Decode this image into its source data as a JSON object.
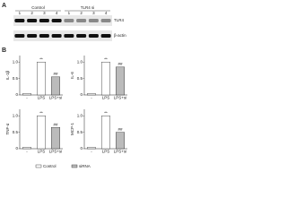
{
  "panel_labels": [
    "A",
    "B"
  ],
  "blot": {
    "groups": [
      "Control",
      "TLR4 si"
    ],
    "lanes": [
      "1",
      "2",
      "3",
      "4",
      "1",
      "2",
      "3",
      "4"
    ],
    "rows": [
      "TLR4",
      "β-actin"
    ]
  },
  "legend": [
    {
      "label": "Control",
      "color": "#ffffff"
    },
    {
      "label": "siRNA",
      "color": "#bbbbbb"
    }
  ],
  "chart_data": [
    {
      "type": "bar",
      "ylabel": "IL-1β",
      "categories": [
        "-",
        "LPS",
        "LPS+si"
      ],
      "values": [
        0.04,
        1.0,
        0.55
      ],
      "colors": [
        "#ffffff",
        "#ffffff",
        "#bbbbbb"
      ],
      "annotations": [
        null,
        "**",
        "##"
      ],
      "ylim": [
        0,
        1.2
      ],
      "yticks": [
        0,
        0.5,
        {
          "value": 1,
          "label": "1.0"
        }
      ]
    },
    {
      "type": "bar",
      "ylabel": "IL-6",
      "categories": [
        "-",
        "LPS",
        "LPS+si"
      ],
      "values": [
        0.04,
        1.0,
        0.85
      ],
      "colors": [
        "#ffffff",
        "#ffffff",
        "#bbbbbb"
      ],
      "annotations": [
        null,
        "**",
        "##"
      ],
      "ylim": [
        0,
        1.2
      ],
      "yticks": [
        0,
        0.5,
        {
          "value": 1,
          "label": "1.0"
        }
      ]
    },
    {
      "type": "bar",
      "ylabel": "TNF-α",
      "categories": [
        "-",
        "LPS",
        "LPS+si"
      ],
      "values": [
        0.04,
        1.0,
        0.65
      ],
      "colors": [
        "#ffffff",
        "#ffffff",
        "#bbbbbb"
      ],
      "annotations": [
        null,
        "**",
        "##"
      ],
      "ylim": [
        0,
        1.2
      ],
      "yticks": [
        0,
        0.5,
        {
          "value": 1,
          "label": "1.0"
        }
      ]
    },
    {
      "type": "bar",
      "ylabel": "MCP-1",
      "categories": [
        "-",
        "LPS",
        "LPS+si"
      ],
      "values": [
        0.04,
        1.0,
        0.5
      ],
      "colors": [
        "#ffffff",
        "#ffffff",
        "#bbbbbb"
      ],
      "annotations": [
        null,
        "**",
        "##"
      ],
      "ylim": [
        0,
        1.2
      ],
      "yticks": [
        0,
        0.5,
        {
          "value": 1,
          "label": "1.0"
        }
      ]
    }
  ]
}
